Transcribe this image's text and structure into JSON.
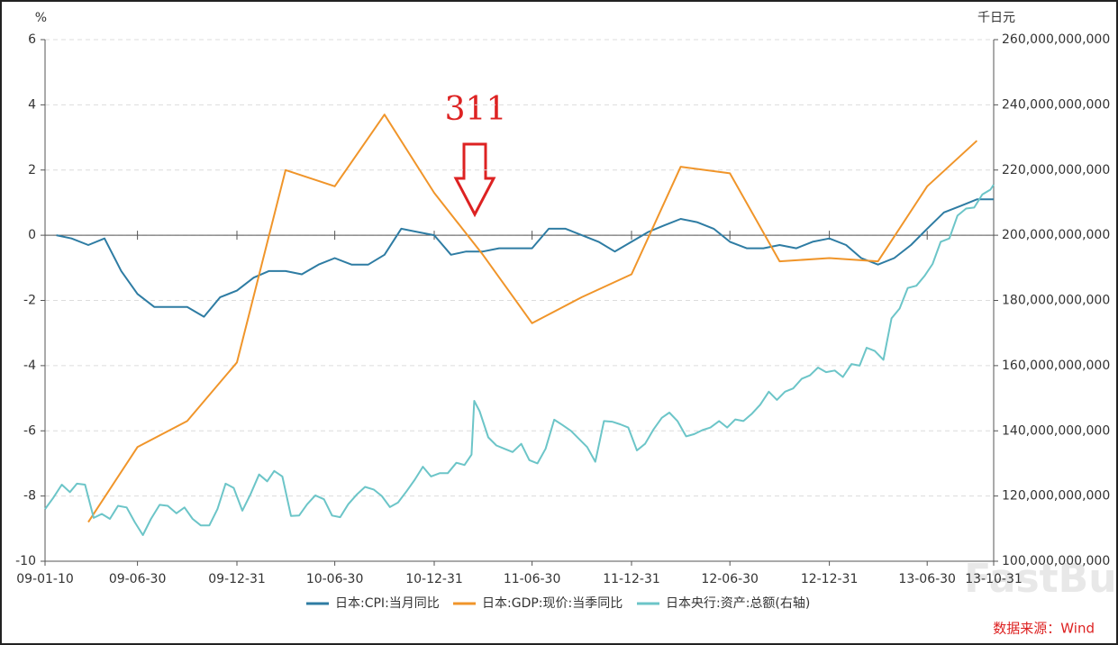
{
  "chart_data": {
    "type": "line",
    "left_unit": "%",
    "right_unit": "千日元",
    "annotation": "311",
    "source": "数据来源：Wind",
    "watermark": "FastBull",
    "xlim": [
      "09-01-10",
      "13-10-31"
    ],
    "xticks": [
      "09-01-10",
      "09-06-30",
      "09-12-31",
      "10-06-30",
      "10-12-31",
      "11-06-30",
      "11-12-31",
      "12-06-30",
      "12-12-31",
      "13-06-30",
      "13-10-31"
    ],
    "ylim": [
      -10,
      6
    ],
    "yticks": [
      -10,
      -8,
      -6,
      -4,
      -2,
      0,
      2,
      4,
      6
    ],
    "y2lim": [
      100000000000,
      260000000000
    ],
    "y2ticks": [
      {
        "value": 100000000000,
        "label": "100,000,000,000"
      },
      {
        "value": 120000000000,
        "label": "120,000,000,000"
      },
      {
        "value": 140000000000,
        "label": "140,000,000,000"
      },
      {
        "value": 160000000000,
        "label": "160,000,000,000"
      },
      {
        "value": 180000000000,
        "label": "180,000,000,000"
      },
      {
        "value": 200000000000,
        "label": "200,000,000,000"
      },
      {
        "value": 220000000000,
        "label": "220,000,000,000"
      },
      {
        "value": 240000000000,
        "label": "240,000,000,000"
      },
      {
        "value": 260000000000,
        "label": "260,000,000,000"
      }
    ],
    "grid": true,
    "series": [
      {
        "name": "日本:CPI:当月同比",
        "color": "#2e7ca3",
        "x": [
          "09-01-31",
          "09-02-28",
          "09-03-31",
          "09-04-30",
          "09-05-31",
          "09-06-30",
          "09-07-31",
          "09-08-31",
          "09-09-30",
          "09-10-31",
          "09-11-30",
          "09-12-31",
          "10-01-31",
          "10-02-28",
          "10-03-31",
          "10-04-30",
          "10-05-31",
          "10-06-30",
          "10-07-31",
          "10-08-31",
          "10-09-30",
          "10-10-31",
          "10-11-30",
          "10-12-31",
          "11-01-31",
          "11-02-28",
          "11-03-31",
          "11-04-30",
          "11-05-31",
          "11-06-30",
          "11-07-31",
          "11-08-31",
          "11-09-30",
          "11-10-31",
          "11-11-30",
          "11-12-31",
          "12-01-31",
          "12-02-29",
          "12-03-31",
          "12-04-30",
          "12-05-31",
          "12-06-30",
          "12-07-31",
          "12-08-31",
          "12-09-30",
          "12-10-31",
          "12-11-30",
          "12-12-31",
          "13-01-31",
          "13-02-28",
          "13-03-31",
          "13-04-30",
          "13-05-31",
          "13-06-30",
          "13-07-31",
          "13-08-31",
          "13-09-30",
          "13-10-31"
        ],
        "values": [
          0.0,
          -0.1,
          -0.3,
          -0.1,
          -1.1,
          -1.8,
          -2.2,
          -2.2,
          -2.2,
          -2.5,
          -1.9,
          -1.7,
          -1.3,
          -1.1,
          -1.1,
          -1.2,
          -0.9,
          -0.7,
          -0.9,
          -0.9,
          -0.6,
          0.2,
          0.1,
          0.0,
          -0.6,
          -0.5,
          -0.5,
          -0.4,
          -0.4,
          -0.4,
          0.2,
          0.2,
          0.0,
          -0.2,
          -0.5,
          -0.2,
          0.1,
          0.3,
          0.5,
          0.4,
          0.2,
          -0.2,
          -0.4,
          -0.4,
          -0.3,
          -0.4,
          -0.2,
          -0.1,
          -0.3,
          -0.7,
          -0.9,
          -0.7,
          -0.3,
          0.2,
          0.7,
          0.9,
          1.1,
          1.1
        ]
      },
      {
        "name": "日本:GDP:现价:当季同比",
        "color": "#f0952a",
        "x": [
          "09-03-31",
          "09-06-30",
          "09-09-30",
          "09-12-31",
          "10-03-31",
          "10-06-30",
          "10-09-30",
          "10-12-31",
          "11-03-31",
          "11-06-30",
          "11-09-30",
          "11-12-31",
          "12-03-31",
          "12-06-30",
          "12-09-30",
          "12-12-31",
          "13-03-31",
          "13-06-30",
          "13-09-30"
        ],
        "values": [
          -8.8,
          -6.5,
          -5.7,
          -3.9,
          2.0,
          1.5,
          3.7,
          1.3,
          -0.6,
          -2.7,
          -1.9,
          -1.2,
          2.1,
          1.9,
          -0.8,
          -0.7,
          -0.8,
          1.5,
          2.9
        ]
      },
      {
        "name": "日本央行:资产:总额(右轴)",
        "color": "#6cc5c8",
        "axis": "y2",
        "x": [
          "09-01-10",
          "09-01-25",
          "09-02-10",
          "09-02-25",
          "09-03-10",
          "09-03-25",
          "09-04-10",
          "09-04-25",
          "09-05-10",
          "09-05-25",
          "09-06-10",
          "09-06-25",
          "09-07-10",
          "09-07-25",
          "09-08-10",
          "09-08-25",
          "09-09-10",
          "09-09-25",
          "09-10-10",
          "09-10-25",
          "09-11-10",
          "09-11-25",
          "09-12-10",
          "09-12-25",
          "10-01-10",
          "10-01-25",
          "10-02-10",
          "10-02-25",
          "10-03-10",
          "10-03-25",
          "10-04-10",
          "10-04-25",
          "10-05-10",
          "10-05-25",
          "10-06-10",
          "10-06-25",
          "10-07-10",
          "10-07-25",
          "10-08-10",
          "10-08-25",
          "10-09-10",
          "10-09-25",
          "10-10-10",
          "10-10-25",
          "10-11-10",
          "10-11-25",
          "10-12-10",
          "10-12-25",
          "11-01-10",
          "11-01-25",
          "11-02-10",
          "11-02-25",
          "11-03-10",
          "11-03-15",
          "11-03-25",
          "11-04-10",
          "11-04-25",
          "11-05-10",
          "11-05-25",
          "11-06-10",
          "11-06-25",
          "11-07-10",
          "11-07-25",
          "11-08-10",
          "11-08-25",
          "11-09-10",
          "11-09-25",
          "11-10-10",
          "11-10-25",
          "11-11-10",
          "11-11-25",
          "11-12-10",
          "11-12-25",
          "12-01-10",
          "12-01-25",
          "12-02-10",
          "12-02-25",
          "12-03-10",
          "12-03-25",
          "12-04-10",
          "12-04-25",
          "12-05-10",
          "12-05-25",
          "12-06-10",
          "12-06-25",
          "12-07-10",
          "12-07-25",
          "12-08-10",
          "12-08-25",
          "12-09-10",
          "12-09-25",
          "12-10-10",
          "12-10-25",
          "12-11-10",
          "12-11-25",
          "12-12-10",
          "12-12-25",
          "13-01-10",
          "13-01-25",
          "13-02-10",
          "13-02-25",
          "13-03-10",
          "13-03-25",
          "13-04-10",
          "13-04-25",
          "13-05-10",
          "13-05-25",
          "13-06-10",
          "13-06-25",
          "13-07-10",
          "13-07-25",
          "13-08-10",
          "13-08-25",
          "13-09-10",
          "13-09-25",
          "13-10-10",
          "13-10-25",
          "13-10-31"
        ],
        "values": [
          116000000000,
          119400000000,
          123500000000,
          121200000000,
          123800000000,
          123500000000,
          113300000000,
          114500000000,
          113000000000,
          117000000000,
          116500000000,
          112000000000,
          108000000000,
          113000000000,
          117300000000,
          117000000000,
          114700000000,
          116500000000,
          113000000000,
          111000000000,
          111000000000,
          116000000000,
          123800000000,
          122500000000,
          115500000000,
          120500000000,
          126600000000,
          124500000000,
          127700000000,
          126000000000,
          113900000000,
          114000000000,
          117500000000,
          120200000000,
          119000000000,
          114000000000,
          113500000000,
          117500000000,
          120500000000,
          122800000000,
          122000000000,
          120000000000,
          116600000000,
          118000000000,
          121500000000,
          125000000000,
          129000000000,
          126000000000,
          127000000000,
          127000000000,
          130200000000,
          129500000000,
          132700000000,
          149200000000,
          146000000000,
          138000000000,
          135500000000,
          134500000000,
          133500000000,
          136000000000,
          131000000000,
          130000000000,
          134500000000,
          143400000000,
          141800000000,
          140000000000,
          137500000000,
          135000000000,
          130500000000,
          143000000000,
          142800000000,
          142000000000,
          141000000000,
          134000000000,
          136000000000,
          140500000000,
          144000000000,
          145600000000,
          143000000000,
          138300000000,
          139000000000,
          140200000000,
          141000000000,
          143000000000,
          141000000000,
          143500000000,
          143000000000,
          145300000000,
          148000000000,
          152000000000,
          149500000000,
          152000000000,
          153000000000,
          156000000000,
          157000000000,
          159400000000,
          158000000000,
          158500000000,
          156500000000,
          160500000000,
          160000000000,
          165500000000,
          164500000000,
          161800000000,
          174500000000,
          177500000000,
          183800000000,
          184500000000,
          187500000000,
          191200000000,
          198000000000,
          199000000000,
          206000000000,
          208200000000,
          208500000000,
          212500000000,
          214000000000,
          215500000000
        ]
      }
    ]
  }
}
